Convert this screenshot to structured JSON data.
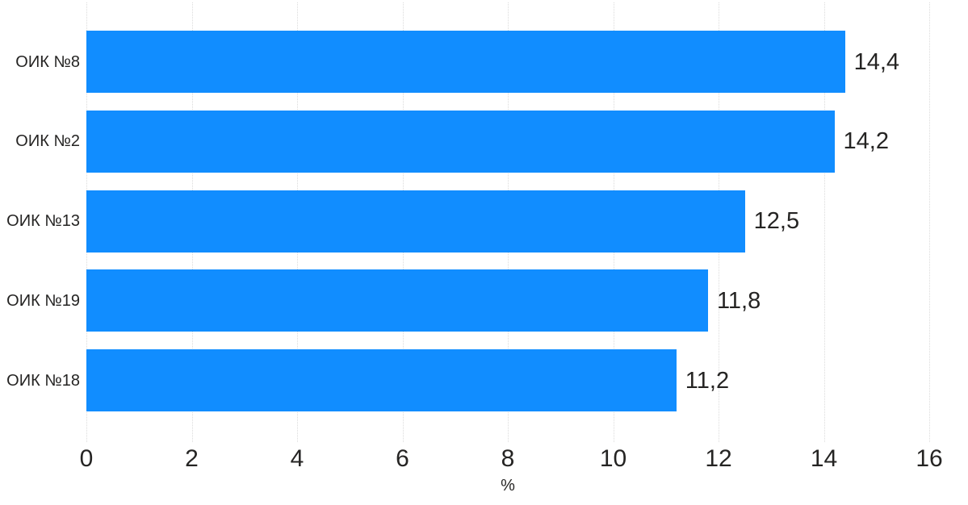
{
  "chart_data": {
    "type": "bar",
    "orientation": "horizontal",
    "title": "",
    "categories": [
      "ОИК №8",
      "ОИК №2",
      "ОИК №13",
      "ОИК №19",
      "ОИК №18"
    ],
    "values": [
      14.4,
      14.2,
      12.5,
      11.8,
      11.2
    ],
    "value_labels": [
      "14,4",
      "14,2",
      "12,5",
      "11,8",
      "11,2"
    ],
    "xlabel": "%",
    "ylabel": "",
    "xlim": [
      0,
      16
    ],
    "xticks": [
      0,
      2,
      4,
      6,
      8,
      10,
      12,
      14,
      16
    ],
    "bar_color": "#118DFF",
    "text_color": "#252423",
    "gridline_color": "#dbdbdb",
    "grid": "vertical-dotted",
    "legend": "none"
  }
}
